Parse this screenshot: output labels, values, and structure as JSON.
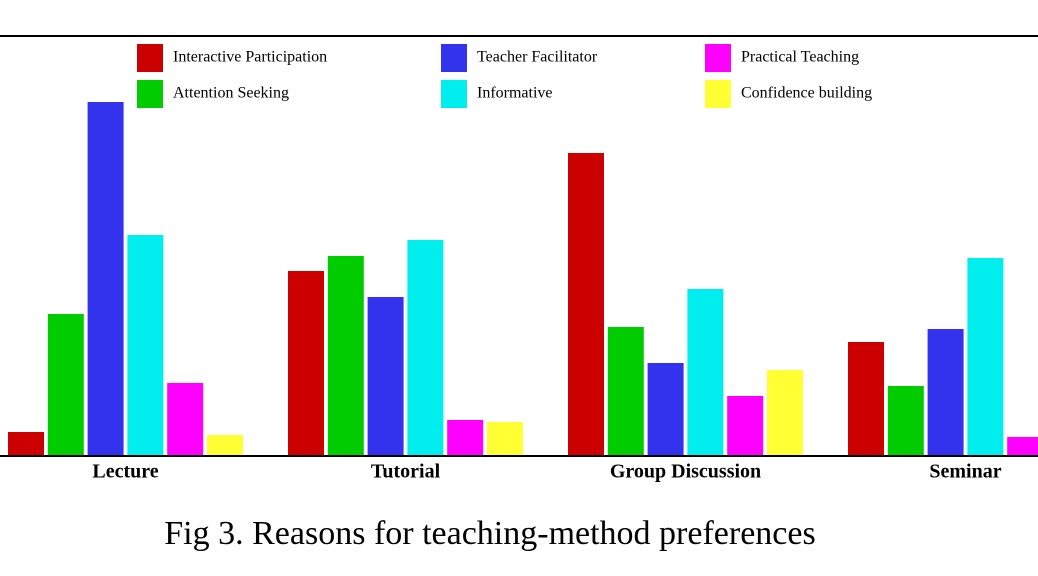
{
  "chart_data": {
    "type": "bar",
    "title": "Fig 3. Reasons for teaching-method preferences",
    "categories": [
      "Lecture",
      "Tutorial",
      "Group Discussion",
      "Seminar"
    ],
    "series": [
      {
        "name": "Interactive Participation",
        "color": "#cc0000",
        "values": [
          24,
          185,
          303,
          114
        ]
      },
      {
        "name": "Attention Seeking",
        "color": "#00cc00",
        "values": [
          142,
          200,
          129,
          70
        ]
      },
      {
        "name": "Teacher Facilitator",
        "color": "#3333ee",
        "values": [
          354,
          159,
          93,
          127
        ]
      },
      {
        "name": "Informative",
        "color": "#00eeee",
        "values": [
          221,
          216,
          167,
          198
        ]
      },
      {
        "name": "Practical Teaching",
        "color": "#ff00ff",
        "values": [
          73,
          36,
          60,
          19
        ]
      },
      {
        "name": "Confidence building",
        "color": "#ffff33",
        "values": [
          21,
          34,
          86,
          null
        ]
      }
    ],
    "ylim": [
      0,
      420
    ],
    "legend": "top"
  }
}
